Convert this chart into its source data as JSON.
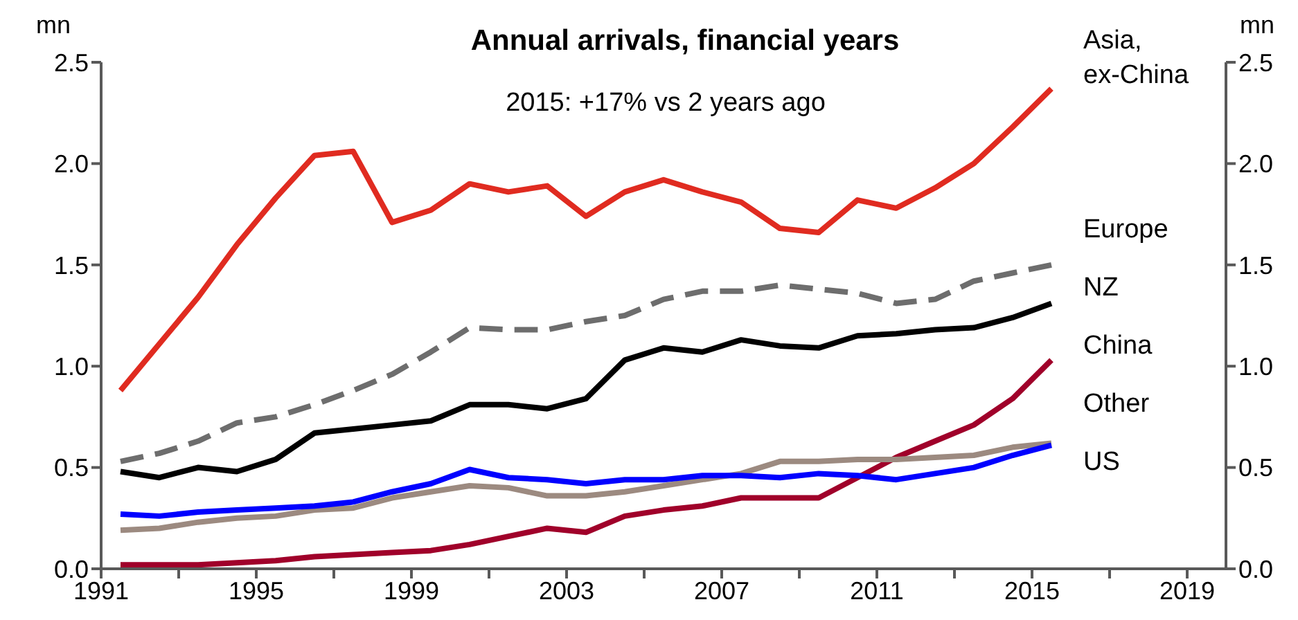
{
  "chart_data": {
    "type": "line",
    "title": "Annual arrivals, financial years",
    "subtitle": "2015: +17% vs 2 years ago",
    "ylabel": "mn",
    "y2label": "mn",
    "x": [
      1991.5,
      1992.5,
      1993.5,
      1994.5,
      1995.5,
      1996.5,
      1997.5,
      1998.5,
      1999.5,
      2000.5,
      2001.5,
      2002.5,
      2003.5,
      2004.5,
      2005.5,
      2006.5,
      2007.5,
      2008.5,
      2009.5,
      2010.5,
      2011.5,
      2012.5,
      2013.5,
      2014.5,
      2015.5
    ],
    "series": [
      {
        "name": "Asia, ex-China",
        "color": "#e02b20",
        "line_style": "solid",
        "values": [
          0.88,
          1.11,
          1.34,
          1.6,
          1.83,
          2.04,
          2.06,
          1.71,
          1.77,
          1.9,
          1.86,
          1.89,
          1.74,
          1.86,
          1.92,
          1.86,
          1.81,
          1.68,
          1.66,
          1.82,
          1.78,
          1.88,
          2.0,
          2.18,
          2.37
        ]
      },
      {
        "name": "Europe",
        "color": "#6d6d6d",
        "line_style": "dashed",
        "values": [
          0.53,
          0.57,
          0.63,
          0.72,
          0.75,
          0.81,
          0.88,
          0.96,
          1.07,
          1.19,
          1.18,
          1.18,
          1.22,
          1.25,
          1.33,
          1.37,
          1.37,
          1.4,
          1.38,
          1.36,
          1.31,
          1.33,
          1.42,
          1.46,
          1.5
        ]
      },
      {
        "name": "NZ",
        "color": "#000000",
        "line_style": "solid",
        "values": [
          0.48,
          0.45,
          0.5,
          0.48,
          0.54,
          0.67,
          0.69,
          0.71,
          0.73,
          0.81,
          0.81,
          0.79,
          0.84,
          1.03,
          1.09,
          1.07,
          1.13,
          1.1,
          1.09,
          1.15,
          1.16,
          1.18,
          1.19,
          1.24,
          1.31
        ]
      },
      {
        "name": "China",
        "color": "#a0002a",
        "line_style": "solid",
        "values": [
          0.02,
          0.02,
          0.02,
          0.03,
          0.04,
          0.06,
          0.07,
          0.08,
          0.09,
          0.12,
          0.16,
          0.2,
          0.18,
          0.26,
          0.29,
          0.31,
          0.35,
          0.35,
          0.35,
          0.45,
          0.55,
          0.63,
          0.71,
          0.84,
          1.03
        ]
      },
      {
        "name": "Other",
        "color": "#9c8a80",
        "line_style": "solid",
        "values": [
          0.19,
          0.2,
          0.23,
          0.25,
          0.26,
          0.29,
          0.3,
          0.35,
          0.38,
          0.41,
          0.4,
          0.36,
          0.36,
          0.38,
          0.41,
          0.44,
          0.47,
          0.53,
          0.53,
          0.54,
          0.54,
          0.55,
          0.56,
          0.6,
          0.62
        ]
      },
      {
        "name": "US",
        "color": "#0000ff",
        "line_style": "solid",
        "values": [
          0.27,
          0.26,
          0.28,
          0.29,
          0.3,
          0.31,
          0.33,
          0.38,
          0.42,
          0.49,
          0.45,
          0.44,
          0.42,
          0.44,
          0.44,
          0.46,
          0.46,
          0.45,
          0.47,
          0.46,
          0.44,
          0.47,
          0.5,
          0.56,
          0.61
        ]
      }
    ],
    "xlim": [
      1991,
      2020
    ],
    "xticks": [
      1991,
      {
        "value": 1993,
        "label": null
      },
      1995,
      {
        "value": 1997,
        "label": null
      },
      1999,
      {
        "value": 2001,
        "label": null
      },
      2003,
      {
        "value": 2005,
        "label": null
      },
      2007,
      {
        "value": 2009,
        "label": null
      },
      2011,
      {
        "value": 2013,
        "label": null
      },
      2015,
      {
        "value": 2017,
        "label": null
      },
      2019
    ],
    "ylim": [
      0,
      2.5
    ],
    "yticks": [
      {
        "value": 0,
        "label": "0.0"
      },
      0.5,
      {
        "value": 1,
        "label": "1.0"
      },
      1.5,
      {
        "value": 2,
        "label": "2.0"
      },
      2.5
    ],
    "y2lim": [
      0,
      2.5
    ],
    "y2ticks": [
      {
        "value": 0,
        "label": "0.0"
      },
      0.5,
      {
        "value": 1,
        "label": "1.0"
      },
      1.5,
      {
        "value": 2,
        "label": "2.0"
      },
      2.5
    ],
    "grid": false,
    "legend": false,
    "marker": "none"
  }
}
